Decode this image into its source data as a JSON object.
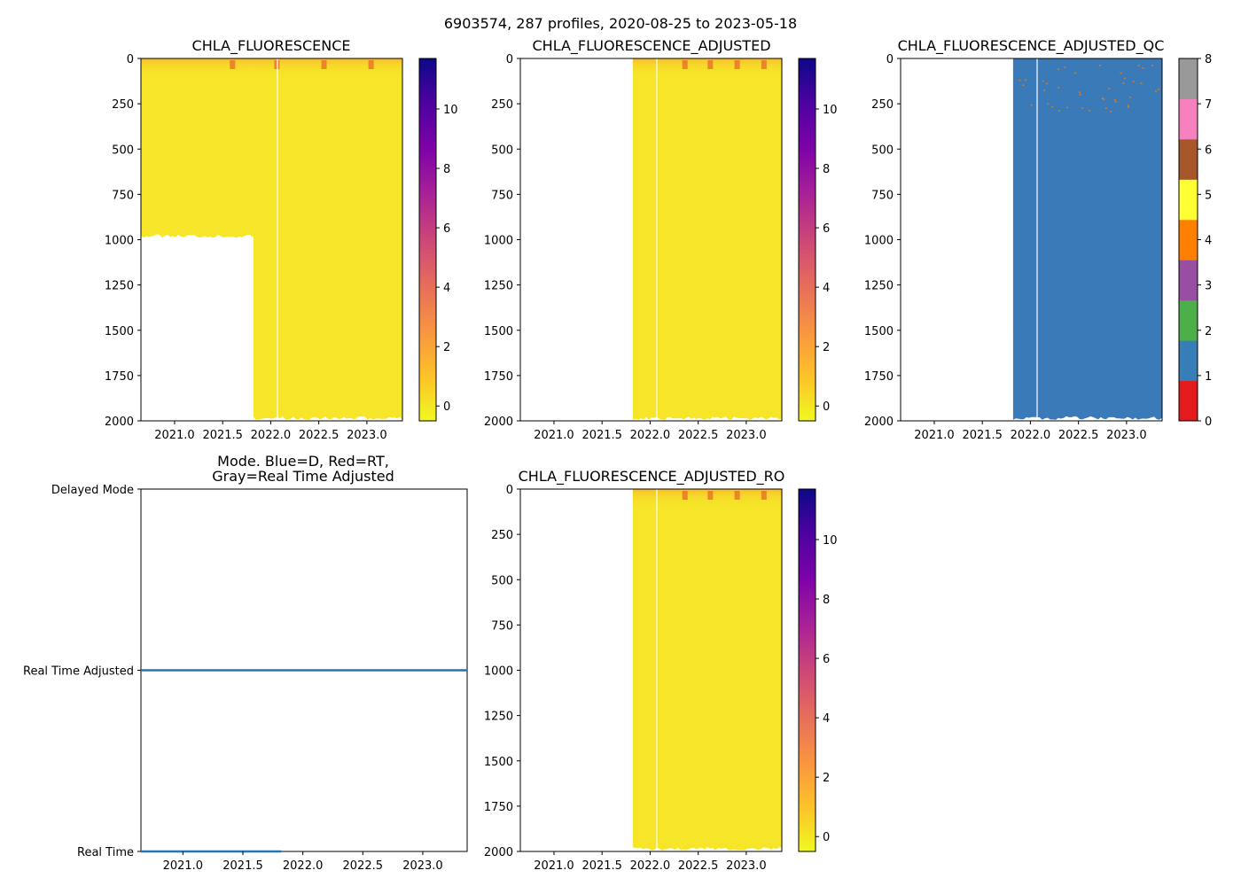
{
  "figure": {
    "suptitle": "6903574, 287 profiles, 2020-08-25 to 2023-05-18"
  },
  "colors": {
    "yellow": "#f6e529",
    "qc_blue": "#3a7ab8",
    "mode_line": "#1f77b4"
  },
  "chart_data": [
    {
      "id": "p1",
      "type": "heatmap",
      "title": "CHLA_FLUORESCENCE",
      "x_ticks": [
        "2021.0",
        "2021.5",
        "2022.0",
        "2022.5",
        "2023.0"
      ],
      "x_tick_values": [
        2021.0,
        2021.5,
        2022.0,
        2022.5,
        2023.0
      ],
      "xlim": [
        2020.65,
        2023.37
      ],
      "y_ticks": [
        "0",
        "250",
        "500",
        "750",
        "1000",
        "1250",
        "1500",
        "1750",
        "2000"
      ],
      "y_tick_values": [
        0,
        250,
        500,
        750,
        1000,
        1250,
        1500,
        1750,
        2000
      ],
      "ylim": [
        0,
        2000
      ],
      "y_inverted": true,
      "data_start_year": 2020.65,
      "deep_data_start_year": 2021.82,
      "shallow_max_depth": 980,
      "deep_max_depth": 1985,
      "gap_year": 2022.07,
      "colorbar": {
        "ticks": [
          "0",
          "2",
          "4",
          "6",
          "8",
          "10"
        ],
        "tick_values": [
          0,
          2,
          4,
          6,
          8,
          10
        ],
        "range": [
          -0.5,
          11.7
        ],
        "colormap": "plasma_r"
      }
    },
    {
      "id": "p2",
      "type": "heatmap",
      "title": "CHLA_FLUORESCENCE_ADJUSTED",
      "x_ticks": [
        "2021.0",
        "2021.5",
        "2022.0",
        "2022.5",
        "2023.0"
      ],
      "x_tick_values": [
        2021.0,
        2021.5,
        2022.0,
        2022.5,
        2023.0
      ],
      "xlim": [
        2020.65,
        2023.37
      ],
      "y_ticks": [
        "0",
        "250",
        "500",
        "750",
        "1000",
        "1250",
        "1500",
        "1750",
        "2000"
      ],
      "y_tick_values": [
        0,
        250,
        500,
        750,
        1000,
        1250,
        1500,
        1750,
        2000
      ],
      "ylim": [
        0,
        2000
      ],
      "y_inverted": true,
      "data_start_year": 2021.82,
      "deep_max_depth": 1985,
      "gap_year": 2022.07,
      "colorbar": {
        "ticks": [
          "0",
          "2",
          "4",
          "6",
          "8",
          "10"
        ],
        "tick_values": [
          0,
          2,
          4,
          6,
          8,
          10
        ],
        "range": [
          -0.5,
          11.7
        ],
        "colormap": "plasma_r"
      }
    },
    {
      "id": "p3",
      "type": "heatmap",
      "title": "CHLA_FLUORESCENCE_ADJUSTED_QC",
      "x_ticks": [
        "2021.0",
        "2021.5",
        "2022.0",
        "2022.5",
        "2023.0"
      ],
      "x_tick_values": [
        2021.0,
        2021.5,
        2022.0,
        2022.5,
        2023.0
      ],
      "xlim": [
        2020.65,
        2023.37
      ],
      "y_ticks": [
        "0",
        "250",
        "500",
        "750",
        "1000",
        "1250",
        "1500",
        "1750",
        "2000"
      ],
      "y_tick_values": [
        0,
        250,
        500,
        750,
        1000,
        1250,
        1500,
        1750,
        2000
      ],
      "ylim": [
        0,
        2000
      ],
      "y_inverted": true,
      "data_start_year": 2021.82,
      "deep_max_depth": 1985,
      "gap_year": 2022.07,
      "dominant_qc": 1,
      "colorbar": {
        "ticks": [
          "0",
          "1",
          "2",
          "3",
          "4",
          "5",
          "6",
          "7",
          "8"
        ],
        "tick_values": [
          0,
          1,
          2,
          3,
          4,
          5,
          6,
          7,
          8
        ],
        "range": [
          0,
          8
        ],
        "categories": [
          {
            "qc": 0,
            "color": "#e41a1c"
          },
          {
            "qc": 1,
            "color": "#377eb8"
          },
          {
            "qc": 2,
            "color": "#4daf4a"
          },
          {
            "qc": 3,
            "color": "#984ea3"
          },
          {
            "qc": 4,
            "color": "#ff7f00"
          },
          {
            "qc": 5,
            "color": "#ffff33"
          },
          {
            "qc": 6,
            "color": "#a65628"
          },
          {
            "qc": 7,
            "color": "#f781bf"
          },
          {
            "qc": 8,
            "color": "#999999"
          }
        ]
      }
    },
    {
      "id": "p4",
      "type": "line",
      "title_line1": "Mode. Blue=D, Red=RT,",
      "title_line2": "Gray=Real Time Adjusted",
      "x_ticks": [
        "2021.0",
        "2021.5",
        "2022.0",
        "2022.5",
        "2023.0"
      ],
      "x_tick_values": [
        2021.0,
        2021.5,
        2022.0,
        2022.5,
        2023.0
      ],
      "xlim": [
        2020.65,
        2023.37
      ],
      "y_ticks": [
        "Delayed Mode",
        "Real Time Adjusted",
        "Real Time"
      ],
      "y_tick_values": [
        2,
        1,
        0
      ],
      "ylim": [
        0,
        2
      ],
      "series": [
        {
          "name": "Real Time",
          "y": 0,
          "x_start": 2020.65,
          "x_end": 2021.82
        },
        {
          "name": "Real Time Adjusted",
          "y": 1,
          "x_start": 2020.65,
          "x_end": 2023.37
        }
      ]
    },
    {
      "id": "p5",
      "type": "heatmap",
      "title": "CHLA_FLUORESCENCE_ADJUSTED_RO",
      "x_ticks": [
        "2021.0",
        "2021.5",
        "2022.0",
        "2022.5",
        "2023.0"
      ],
      "x_tick_values": [
        2021.0,
        2021.5,
        2022.0,
        2022.5,
        2023.0
      ],
      "xlim": [
        2020.65,
        2023.37
      ],
      "y_ticks": [
        "0",
        "250",
        "500",
        "750",
        "1000",
        "1250",
        "1500",
        "1750",
        "2000"
      ],
      "y_tick_values": [
        0,
        250,
        500,
        750,
        1000,
        1250,
        1500,
        1750,
        2000
      ],
      "ylim": [
        0,
        2000
      ],
      "y_inverted": true,
      "data_start_year": 2021.82,
      "deep_max_depth": 1985,
      "gap_year": 2022.07,
      "colorbar": {
        "ticks": [
          "0",
          "2",
          "4",
          "6",
          "8",
          "10"
        ],
        "tick_values": [
          0,
          2,
          4,
          6,
          8,
          10
        ],
        "range": [
          -0.5,
          11.7
        ],
        "colormap": "plasma_r"
      }
    }
  ]
}
